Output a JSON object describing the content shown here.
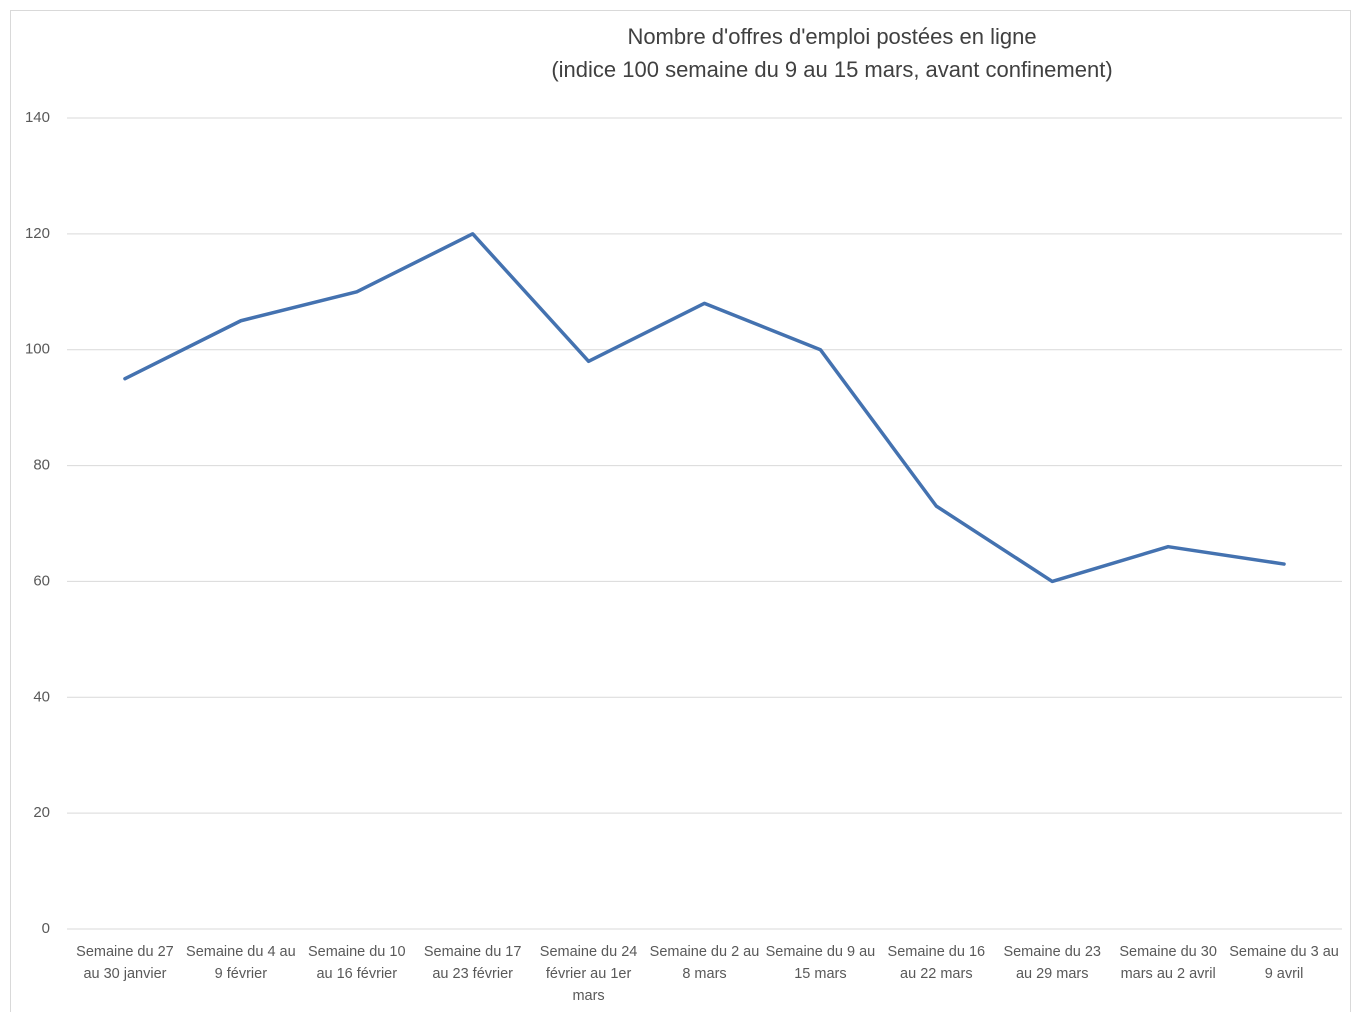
{
  "chart_data": {
    "type": "line",
    "title": "Nombre d'offres d'emploi postées en ligne",
    "subtitle": "(indice 100 semaine du 9 au 15 mars, avant confinement)",
    "categories": [
      "Semaine du 27 au 30 janvier",
      "Semaine du 4 au 9 février",
      "Semaine du 10 au 16 février",
      "Semaine du 17 au 23 février",
      "Semaine du 24 février au 1er mars",
      "Semaine du 2 au 8 mars",
      "Semaine du 9 au 15 mars",
      "Semaine du 16 au 22 mars",
      "Semaine du 23 au 29 mars",
      "Semaine du 30 mars au 2 avril",
      "Semaine du 3 au 9 avril"
    ],
    "values": [
      95,
      105,
      110,
      120,
      98,
      108,
      100,
      73,
      60,
      66,
      63
    ],
    "color": "#4472b0",
    "ylim": [
      0,
      140
    ],
    "yticks": [
      0,
      20,
      40,
      60,
      80,
      100,
      120,
      140
    ],
    "grid": true
  }
}
